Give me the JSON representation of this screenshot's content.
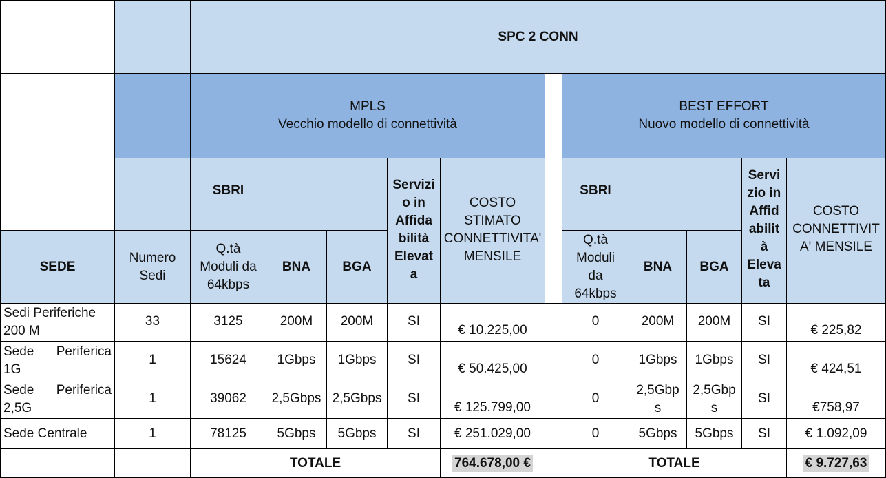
{
  "title": "SPC 2 CONN",
  "mpls": {
    "name": "MPLS",
    "desc": "Vecchio modello di connettività"
  },
  "best": {
    "name": "BEST EFFORT",
    "desc": "Nuovo modello di connettività"
  },
  "headers": {
    "sbri": "SBRI",
    "servizi_mpls": "Servizi\no in\nAffida\nbilità\nElevat\na",
    "costo_mpls": "COSTO\nSTIMATO\nCONNETTIVITA'\nMENSILE",
    "servizio_be": "Servi\nzio in\nAffid\nabilit\nà\nEleva\nta",
    "costo_be": "COSTO\nCONNETTIVIT\nA' MENSILE",
    "sede": "SEDE",
    "numero_sedi": "Numero\nSedi",
    "qta_mpls": "Q.tà\nModuli da\n64kbps",
    "qta_be": "Q.tà\nModuli\nda\n64kbps",
    "bna": "BNA",
    "bga": "BGA"
  },
  "rows": [
    {
      "sede": "Sedi Periferiche 200 M",
      "num": "33",
      "qta_m": "3125",
      "bna_m": "200M",
      "bga_m": "200M",
      "srv_m": "SI",
      "costo_m": "€ 10.225,00",
      "qta_b": "0",
      "bna_b": "200M",
      "bga_b": "200M",
      "srv_b": "SI",
      "costo_b": "€ 225,82"
    },
    {
      "sede": "Sede Periferica 1G",
      "num": "1",
      "qta_m": "15624",
      "bna_m": "1Gbps",
      "bga_m": "1Gbps",
      "srv_m": "SI",
      "costo_m": "€ 50.425,00",
      "qta_b": "0",
      "bna_b": "1Gbps",
      "bga_b": "1Gbps",
      "srv_b": "SI",
      "costo_b": "€ 424,51"
    },
    {
      "sede": "Sede Periferica 2,5G",
      "num": "1",
      "qta_m": "39062",
      "bna_m": "2,5Gbps",
      "bga_m": "2,5Gbps",
      "srv_m": "SI",
      "costo_m": "€ 125.799,00",
      "qta_b": "0",
      "bna_b": "2,5Gbp\ns",
      "bga_b": "2,5Gbp\ns",
      "srv_b": "SI",
      "costo_b": "€758,97"
    },
    {
      "sede": "Sede Centrale",
      "num": "1",
      "qta_m": "78125",
      "bna_m": "5Gbps",
      "bga_m": "5Gbps",
      "srv_m": "SI",
      "costo_m": "€ 251.029,00",
      "qta_b": "0",
      "bna_b": "5Gbps",
      "bga_b": "5Gbps",
      "srv_b": "SI",
      "costo_b": "€ 1.092,09"
    }
  ],
  "totals": {
    "label": "TOTALE",
    "mpls": "764.678,00 €",
    "best": "€ 9.727,63"
  }
}
